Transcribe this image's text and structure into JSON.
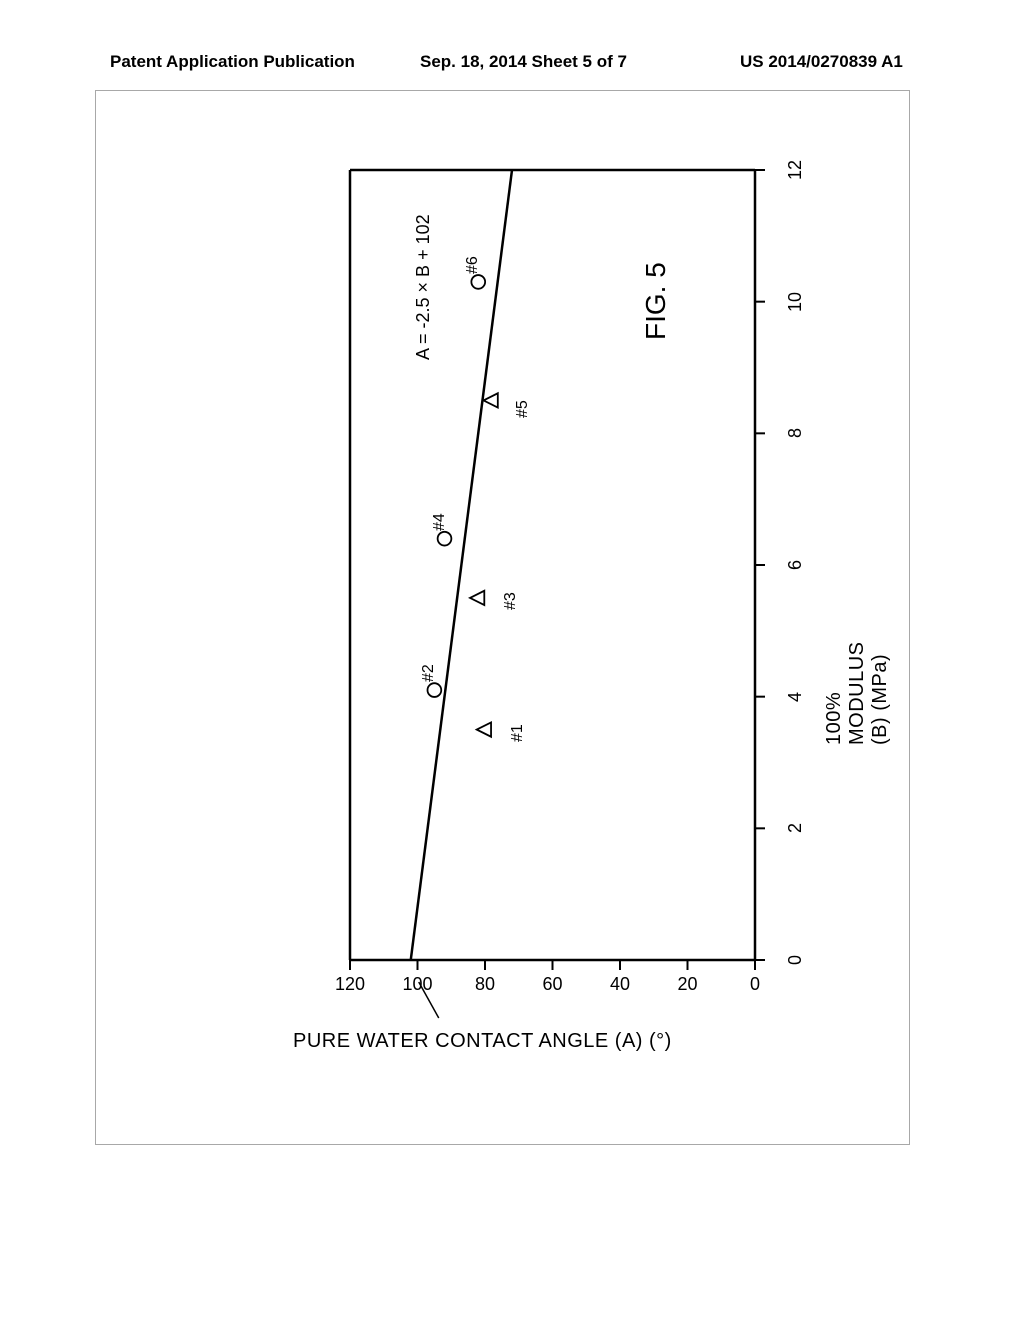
{
  "header": {
    "left": "Patent Application Publication",
    "center": "Sep. 18, 2014  Sheet 5 of 7",
    "right": "US 2014/0270839 A1"
  },
  "figure": {
    "title": "FIG. 5",
    "chart": {
      "type": "scatter-with-line",
      "orientation_deg": -90,
      "xlabel": "100% MODULUS (B) (MPa)",
      "ylabel": "PURE WATER CONTACT ANGLE (A) (°)",
      "xlim": [
        0,
        12
      ],
      "ylim": [
        0,
        120
      ],
      "xtick_step": 2,
      "ytick_step": 20,
      "xticks": [
        0,
        2,
        4,
        6,
        8,
        10,
        12
      ],
      "yticks": [
        0,
        20,
        40,
        60,
        80,
        100,
        120
      ],
      "line_equation": "A = -2.5 × B + 102",
      "line_x": [
        0,
        12
      ],
      "line_y": [
        102,
        72
      ],
      "line_color": "#000000",
      "line_width": 2.5,
      "background_color": "#ffffff",
      "axis_color": "#000000",
      "axis_width": 2.5,
      "tick_fontsize": 18,
      "label_fontsize": 20,
      "marker_size": 11,
      "marker_stroke": "#000000",
      "marker_fill": "#ffffff",
      "marker_stroke_width": 1.8,
      "points": [
        {
          "id": "#1",
          "x": 3.5,
          "y": 80,
          "marker": "triangle"
        },
        {
          "id": "#2",
          "x": 4.1,
          "y": 95,
          "marker": "circle"
        },
        {
          "id": "#3",
          "x": 5.5,
          "y": 82,
          "marker": "triangle"
        },
        {
          "id": "#4",
          "x": 6.4,
          "y": 92,
          "marker": "circle"
        },
        {
          "id": "#5",
          "x": 8.5,
          "y": 78,
          "marker": "triangle"
        },
        {
          "id": "#6",
          "x": 10.3,
          "y": 82,
          "marker": "circle"
        }
      ]
    }
  }
}
